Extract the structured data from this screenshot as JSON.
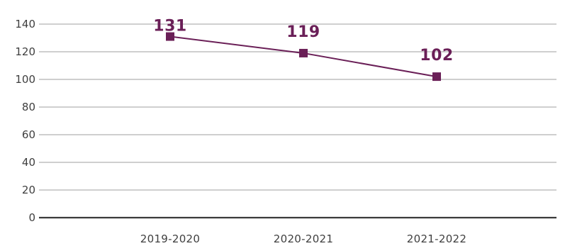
{
  "chart_data": {
    "type": "line",
    "title": "",
    "xlabel": "",
    "ylabel": "",
    "categories": [
      "2019-2020",
      "2020-2021",
      "2021-2022"
    ],
    "series": [
      {
        "values": [
          131,
          119,
          102
        ],
        "color": "#6a1f57"
      }
    ],
    "data_labels": [
      "131",
      "119",
      "102"
    ],
    "ylim": [
      0,
      140
    ],
    "yticks": [
      0,
      20,
      40,
      60,
      80,
      100,
      120,
      140
    ],
    "ytick_labels": [
      "0",
      "20",
      "40",
      "60",
      "80",
      "100",
      "120",
      "140"
    ],
    "grid": true,
    "legend": "none",
    "colors": {
      "series": "#6a1f57",
      "grid": "#cfcfcf",
      "axis": "#3a3a3a",
      "text": "#3f3f3f"
    }
  }
}
